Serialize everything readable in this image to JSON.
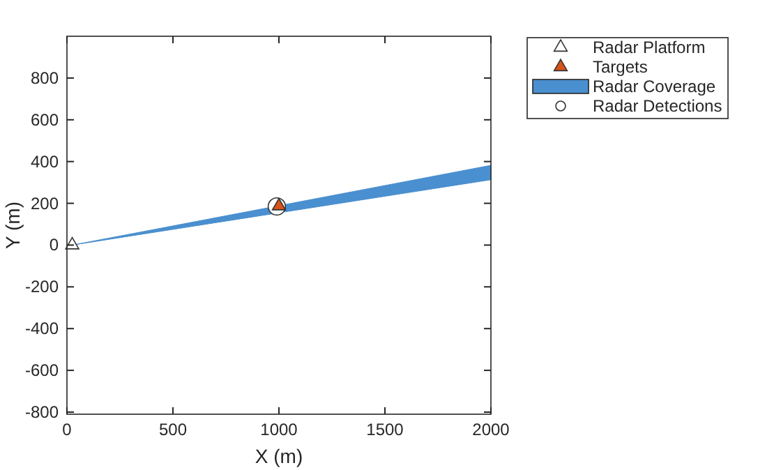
{
  "chart_data": {
    "type": "scatter",
    "xlabel": "X (m)",
    "ylabel": "Y (m)",
    "xlim": [
      0,
      2000
    ],
    "xticks": [
      0,
      500,
      1000,
      1500,
      2000
    ],
    "ylim": [
      -810,
      1000
    ],
    "yticks": [
      -800,
      -600,
      -400,
      -200,
      0,
      200,
      400,
      600,
      800
    ],
    "grid": false,
    "legend": "top right",
    "series": [
      {
        "name": "Radar Platform",
        "marker": "triangle",
        "color": "#ffffff",
        "x": [
          25
        ],
        "values": [
          0
        ]
      },
      {
        "name": "Targets",
        "marker": "triangle",
        "color": "#d95319",
        "x": [
          1000
        ],
        "values": [
          187
        ]
      },
      {
        "name": "Radar Coverage",
        "type": "area",
        "color": "#4a8fcf",
        "x": [
          25,
          2000,
          2000,
          25
        ],
        "values": [
          0,
          382,
          313,
          0
        ]
      },
      {
        "name": "Radar Detections",
        "marker": "circle",
        "color": "#ffffff",
        "x": [
          990
        ],
        "values": [
          185
        ]
      }
    ]
  }
}
